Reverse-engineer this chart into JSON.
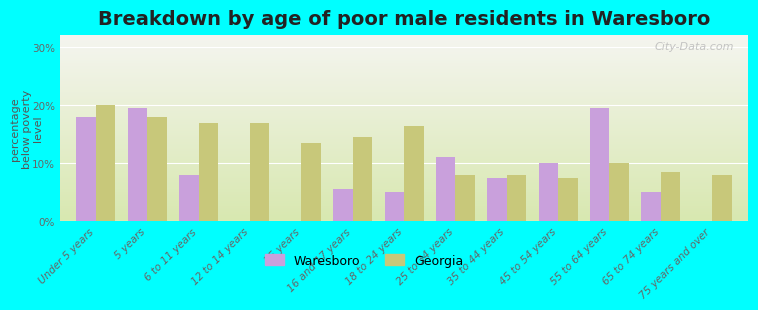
{
  "title": "Breakdown by age of poor male residents in Waresboro",
  "ylabel": "percentage\nbelow poverty\nlevel",
  "categories": [
    "Under 5 years",
    "5 years",
    "6 to 11 years",
    "12 to 14 years",
    "15 years",
    "16 and 17 years",
    "18 to 24 years",
    "25 to 34 years",
    "35 to 44 years",
    "45 to 54 years",
    "55 to 64 years",
    "65 to 74 years",
    "75 years and over"
  ],
  "waresboro": [
    18,
    19.5,
    8,
    0,
    0,
    5.5,
    5,
    11,
    7.5,
    10,
    19.5,
    5,
    0
  ],
  "georgia": [
    20,
    18,
    17,
    17,
    13.5,
    14.5,
    16.5,
    8,
    8,
    7.5,
    10,
    8.5,
    8
  ],
  "waresboro_color": "#c9a0dc",
  "georgia_color": "#c8c87a",
  "background_color": "#00ffff",
  "plot_bg_top": "#f5f5f0",
  "plot_bg_bottom": "#d8e8b0",
  "ylim": [
    0,
    32
  ],
  "yticks": [
    0,
    10,
    20,
    30
  ],
  "ytick_labels": [
    "0%",
    "10%",
    "20%",
    "30%"
  ],
  "watermark": "City-Data.com",
  "title_fontsize": 14,
  "axis_label_fontsize": 8,
  "tick_fontsize": 7.5,
  "legend_fontsize": 9,
  "bar_width": 0.38
}
